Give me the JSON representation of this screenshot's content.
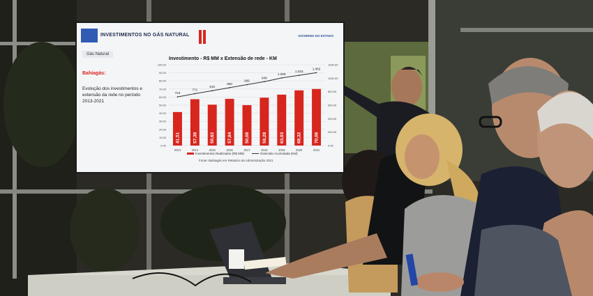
{
  "slide": {
    "header_title": "INVESTIMENTOS NO GÁS NATURAL",
    "gov_logo_text": "GOVERNO DO ESTADO",
    "tag": "Gás Natural",
    "side_title": "Bahiagás:",
    "side_text": "Evolução dos investimentos e extensão da rede no período 2013-2021",
    "source": "Fonte: Bahiagás em Relatório da Administração 2021"
  },
  "chart_data": {
    "type": "bar",
    "title": "Investimento - R$ MM x Extensão de rede - KM",
    "categories": [
      "2013",
      "2014",
      "2015",
      "2016",
      "2017",
      "2018",
      "2019",
      "2020",
      "2021"
    ],
    "series": [
      {
        "name": "Investimentos Realizados (R$ MM)",
        "values": [
          41.51,
          57.38,
          50.62,
          57.84,
          50.08,
          59.28,
          63.03,
          68.32,
          70.06
        ]
      },
      {
        "name": "Extensão Acumulada (KM)",
        "values": [
          723,
          771,
          815,
          860,
          905,
          949,
          1005,
          1043,
          1082
        ]
      }
    ],
    "ylim_left": [
      0,
      100
    ],
    "ylim_right": [
      0,
      1200
    ],
    "left_ticks": [
      "100.00",
      "90.00",
      "80.00",
      "70.00",
      "60.00",
      "50.00",
      "40.00",
      "30.00",
      "20.00",
      "10.00",
      "0.00"
    ],
    "right_ticks": [
      "1200.00",
      "1000.00",
      "800.00",
      "600.00",
      "400.00",
      "200.00",
      "0.00"
    ],
    "colors": {
      "bars": "#d7261e",
      "line": "#333333"
    }
  }
}
